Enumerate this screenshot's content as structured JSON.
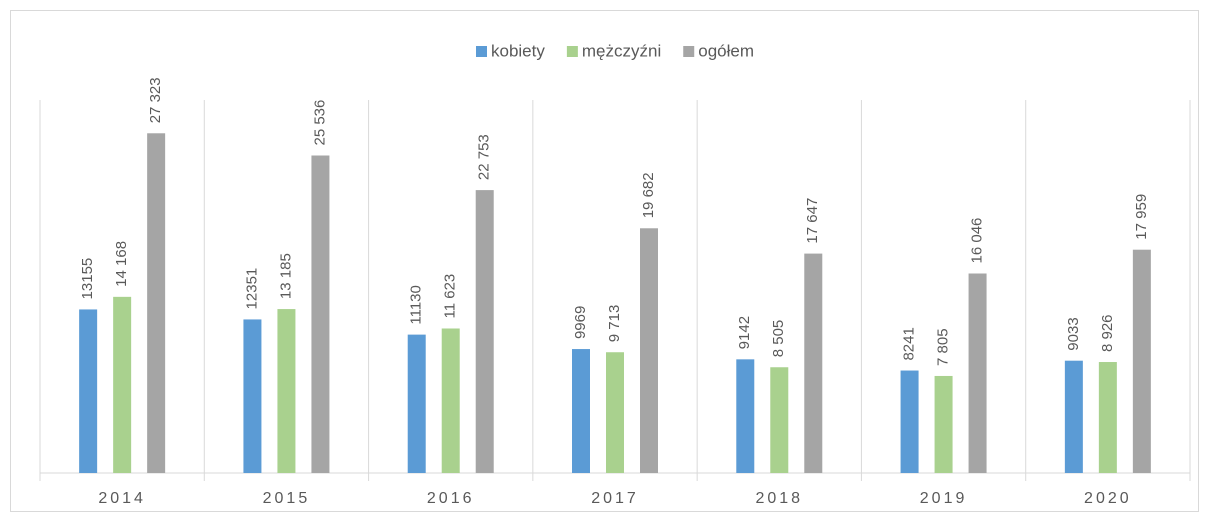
{
  "chart_data": {
    "type": "bar",
    "categories": [
      "2014",
      "2015",
      "2016",
      "2017",
      "2018",
      "2019",
      "2020"
    ],
    "series": [
      {
        "name": "kobiety",
        "color": "#5b9bd5",
        "values": [
          13155,
          12351,
          11130,
          9969,
          9142,
          8241,
          9033
        ],
        "value_labels": [
          "13155",
          "12351",
          "11130",
          "9969",
          "9142",
          "8241",
          "9033"
        ]
      },
      {
        "name": "mężczyźni",
        "color": "#a9d18e",
        "values": [
          14168,
          13185,
          11623,
          9713,
          8505,
          7805,
          8926
        ],
        "value_labels": [
          "14 168",
          "13 185",
          "11 623",
          "9 713",
          "8 505",
          "7 805",
          "8 926"
        ]
      },
      {
        "name": "ogółem",
        "color": "#a5a5a5",
        "values": [
          27323,
          25536,
          22753,
          19682,
          17647,
          16046,
          17959
        ],
        "value_labels": [
          "27 323",
          "25 536",
          "22 753",
          "19 682",
          "17 647",
          "16 046",
          "17 959"
        ]
      }
    ],
    "ylim": [
      0,
      30000
    ],
    "legend": "top"
  }
}
